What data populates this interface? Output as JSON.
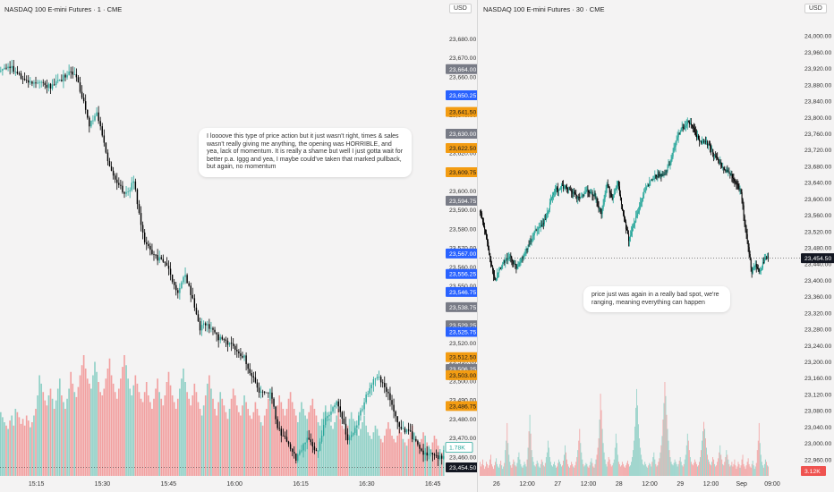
{
  "left_panel": {
    "title": "NASDAQ 100 E-mini Futures · 1 · CME",
    "currency": "USD",
    "annotation": "I loooove this type of price action but it just wasn't right, times & sales wasn't really giving me anything, the opening was HORRIBLE, and yea, lack of momentum. It is really a shame but well I just gotta wait for better p.a. Iggg and yea, I maybe could've taken that marked pullback, but again, no momentum"
  },
  "right_panel": {
    "title": "NASDAQ 100 E-mini Futures · 30 · CME",
    "currency": "USD",
    "annotation": "price just was again in a really bad spot, we're ranging, meaning everything can happen"
  },
  "colors": {
    "up": "#26a69a",
    "down": "#000000",
    "vol_up": "#8fd0c6",
    "vol_down": "#f2a0a0",
    "tag_gray": "#787b86",
    "tag_blue": "#2962ff",
    "tag_orange": "#f39c12",
    "tag_black": "#131722",
    "tag_red": "#ef5350",
    "tag_green_outline": "#26a69a"
  },
  "chart_data": [
    {
      "type": "candlestick",
      "title": "NASDAQ 100 E-mini Futures · 1 · CME",
      "ylabel": "USD",
      "ylim": [
        23450,
        23690
      ],
      "y_ticks": [
        23460,
        23470,
        23480,
        23490,
        23500,
        23510,
        23520,
        23530,
        23540,
        23550,
        23560,
        23570,
        23580,
        23590,
        23600,
        23610,
        23620,
        23630,
        23640,
        23650,
        23660,
        23670,
        23680
      ],
      "x_ticks": [
        "15:15",
        "15:30",
        "15:45",
        "16:00",
        "16:15",
        "16:30",
        "16:45"
      ],
      "price_tags": [
        {
          "label": "23,664.00",
          "value": 23664,
          "style": "gray"
        },
        {
          "label": "23,650.25",
          "value": 23650.25,
          "style": "blue"
        },
        {
          "label": "23,641.50",
          "value": 23641.5,
          "style": "orange"
        },
        {
          "label": "23,630.00",
          "value": 23630,
          "style": "gray"
        },
        {
          "label": "23,622.50",
          "value": 23622.5,
          "style": "orange"
        },
        {
          "label": "23,609.75",
          "value": 23609.75,
          "style": "orange"
        },
        {
          "label": "23,594.75",
          "value": 23594.75,
          "style": "gray"
        },
        {
          "label": "23,567.00",
          "value": 23567,
          "style": "blue"
        },
        {
          "label": "23,556.25",
          "value": 23556.25,
          "style": "blue"
        },
        {
          "label": "23,546.75",
          "value": 23546.75,
          "style": "blue"
        },
        {
          "label": "23,538.75",
          "value": 23538.75,
          "style": "gray"
        },
        {
          "label": "23,529.25",
          "value": 23529.25,
          "style": "gray"
        },
        {
          "label": "23,525.75",
          "value": 23525.75,
          "style": "blue"
        },
        {
          "label": "23,512.50",
          "value": 23512.5,
          "style": "orange"
        },
        {
          "label": "23,506.25",
          "value": 23506.25,
          "style": "gray"
        },
        {
          "label": "23,503.00",
          "value": 23503,
          "style": "orange"
        },
        {
          "label": "23,486.75",
          "value": 23486.75,
          "style": "orange"
        },
        {
          "label": "1.78K",
          "value": 23465,
          "style": "green_outline"
        },
        {
          "label": "23,454.50",
          "value": 23454.5,
          "style": "black"
        }
      ],
      "last_price": 23454.5,
      "volume_label": "1.78K",
      "path": [
        [
          0,
          23663
        ],
        [
          6,
          23665
        ],
        [
          12,
          23658
        ],
        [
          20,
          23657
        ],
        [
          27,
          23655
        ],
        [
          32,
          23658
        ],
        [
          38,
          23664
        ],
        [
          42,
          23657
        ],
        [
          48,
          23635
        ],
        [
          52,
          23642
        ],
        [
          58,
          23615
        ],
        [
          62,
          23605
        ],
        [
          68,
          23598
        ],
        [
          72,
          23605
        ],
        [
          78,
          23572
        ],
        [
          84,
          23565
        ],
        [
          90,
          23562
        ],
        [
          96,
          23545
        ],
        [
          100,
          23556
        ],
        [
          108,
          23528
        ],
        [
          112,
          23530
        ],
        [
          118,
          23522
        ],
        [
          124,
          23520
        ],
        [
          132,
          23512
        ],
        [
          136,
          23503
        ],
        [
          140,
          23495
        ],
        [
          146,
          23495
        ],
        [
          150,
          23475
        ],
        [
          156,
          23468
        ],
        [
          160,
          23458
        ],
        [
          166,
          23470
        ],
        [
          172,
          23462
        ],
        [
          176,
          23480
        ],
        [
          182,
          23490
        ],
        [
          188,
          23470
        ],
        [
          192,
          23475
        ],
        [
          200,
          23497
        ],
        [
          204,
          23503
        ],
        [
          210,
          23492
        ],
        [
          216,
          23476
        ],
        [
          222,
          23472
        ],
        [
          228,
          23463
        ],
        [
          236,
          23460
        ],
        [
          240,
          23460
        ]
      ],
      "vol_range": [
        0,
        100
      ],
      "volume": [
        38,
        35,
        32,
        30,
        28,
        33,
        36,
        30,
        40,
        38,
        35,
        31,
        34,
        30,
        36,
        33,
        29,
        32,
        36,
        40,
        48,
        60,
        55,
        50,
        45,
        42,
        48,
        52,
        46,
        40,
        45,
        52,
        58,
        48,
        44,
        40,
        46,
        52,
        62,
        55,
        50,
        47,
        53,
        60,
        66,
        72,
        64,
        58,
        55,
        52,
        60,
        68,
        62,
        56,
        50,
        48,
        52,
        58,
        64,
        70,
        60,
        55,
        50,
        46,
        52,
        58,
        65,
        72,
        66,
        58,
        52,
        48,
        54,
        60,
        55,
        50,
        46,
        44,
        50,
        56,
        48,
        44,
        40,
        46,
        52,
        58,
        50,
        46,
        42,
        48,
        56,
        62,
        54,
        48,
        44,
        40,
        46,
        52,
        58,
        64,
        56,
        50,
        46,
        42,
        48,
        55,
        50,
        44,
        40,
        36,
        42,
        48,
        55,
        60,
        52,
        46,
        40,
        36,
        44,
        50,
        46,
        42,
        38,
        34,
        40,
        46,
        52,
        48,
        42,
        38,
        36,
        42,
        48,
        44,
        40,
        36,
        34,
        38,
        44,
        40,
        36,
        32,
        30,
        36,
        40,
        46,
        52,
        46,
        40,
        36,
        42,
        48,
        44,
        40,
        36,
        40,
        46,
        50,
        44,
        40,
        36,
        32,
        38,
        44,
        40,
        36,
        34,
        38,
        42,
        46,
        40,
        36,
        32,
        30,
        34,
        38,
        42,
        38,
        34,
        30,
        28,
        32,
        36,
        40,
        34,
        30,
        28,
        26,
        30,
        34,
        38,
        34,
        30,
        28,
        24,
        28,
        32,
        36,
        30,
        26,
        24,
        22,
        26,
        30,
        28,
        24,
        22,
        20,
        24,
        28,
        32,
        28,
        24,
        22,
        20,
        24,
        28,
        26,
        22,
        20,
        18,
        22,
        26,
        30,
        26,
        22,
        20,
        18,
        22,
        26,
        24,
        20,
        18,
        16,
        20,
        24,
        22,
        18,
        16,
        14,
        18,
        22,
        20,
        16
      ]
    },
    {
      "type": "candlestick",
      "title": "NASDAQ 100 E-mini Futures · 30 · CME",
      "ylabel": "USD",
      "ylim": [
        22920,
        24040
      ],
      "y_ticks": [
        22960,
        23000,
        23040,
        23080,
        23120,
        23160,
        23200,
        23240,
        23280,
        23320,
        23360,
        23400,
        23440,
        23480,
        23520,
        23560,
        23600,
        23640,
        23680,
        23720,
        23760,
        23800,
        23840,
        23880,
        23920,
        23960,
        24000
      ],
      "x_ticks": [
        "26",
        "12:00",
        "27",
        "12:00",
        "28",
        "12:00",
        "29",
        "12:00",
        "Sep",
        "09:00"
      ],
      "price_tags": [
        {
          "label": "23,454.50",
          "value": 23454.5,
          "style": "black"
        },
        {
          "label": "3.12K",
          "value": 22932,
          "style": "red"
        }
      ],
      "last_price": 23454.5,
      "volume_label": "3.12K",
      "path": [
        [
          0,
          23570
        ],
        [
          6,
          23520
        ],
        [
          12,
          23440
        ],
        [
          16,
          23400
        ],
        [
          24,
          23440
        ],
        [
          32,
          23460
        ],
        [
          40,
          23430
        ],
        [
          50,
          23470
        ],
        [
          60,
          23520
        ],
        [
          70,
          23540
        ],
        [
          76,
          23580
        ],
        [
          82,
          23620
        ],
        [
          90,
          23630
        ],
        [
          100,
          23620
        ],
        [
          110,
          23600
        ],
        [
          118,
          23620
        ],
        [
          126,
          23610
        ],
        [
          134,
          23560
        ],
        [
          140,
          23640
        ],
        [
          146,
          23600
        ],
        [
          152,
          23640
        ],
        [
          158,
          23560
        ],
        [
          164,
          23500
        ],
        [
          170,
          23540
        ],
        [
          176,
          23580
        ],
        [
          182,
          23620
        ],
        [
          190,
          23650
        ],
        [
          198,
          23660
        ],
        [
          204,
          23660
        ],
        [
          210,
          23690
        ],
        [
          216,
          23740
        ],
        [
          222,
          23770
        ],
        [
          230,
          23790
        ],
        [
          236,
          23770
        ],
        [
          242,
          23740
        ],
        [
          248,
          23740
        ],
        [
          254,
          23730
        ],
        [
          260,
          23700
        ],
        [
          264,
          23690
        ],
        [
          270,
          23670
        ],
        [
          276,
          23660
        ],
        [
          282,
          23640
        ],
        [
          288,
          23620
        ],
        [
          292,
          23540
        ],
        [
          296,
          23480
        ],
        [
          300,
          23420
        ],
        [
          304,
          23440
        ],
        [
          308,
          23420
        ],
        [
          314,
          23450
        ],
        [
          318,
          23460
        ]
      ],
      "volume": [
        12,
        8,
        10,
        14,
        9,
        6,
        8,
        12,
        10,
        7,
        9,
        14,
        18,
        10,
        8,
        6,
        9,
        12,
        15,
        10,
        8,
        7,
        10,
        13,
        9,
        6,
        8,
        11,
        22,
        30,
        45,
        28,
        18,
        12,
        9,
        7,
        10,
        14,
        12,
        9,
        8,
        11,
        16,
        20,
        14,
        10,
        8,
        7,
        9,
        12,
        10,
        8,
        14,
        24,
        38,
        52,
        36,
        22,
        16,
        12,
        9,
        8,
        10,
        13,
        11,
        8,
        7,
        10,
        14,
        12,
        9,
        8,
        11,
        16,
        20,
        30,
        24,
        16,
        12,
        9,
        8,
        10,
        12,
        9,
        7,
        8,
        11,
        14,
        12,
        10,
        8,
        9,
        13,
        18,
        26,
        20,
        14,
        10,
        8,
        7,
        9,
        12,
        10,
        8,
        7,
        9,
        12,
        16,
        22,
        30,
        40,
        28,
        20,
        14,
        10,
        8,
        9,
        11,
        10,
        8,
        7,
        9,
        12,
        15,
        11,
        8,
        7,
        10,
        14,
        18,
        24,
        32,
        48,
        70,
        56,
        40,
        28,
        20,
        14,
        10,
        8,
        12,
        16,
        14,
        10,
        8,
        9,
        11,
        14,
        24,
        36,
        28,
        18,
        12,
        10,
        8,
        9,
        12,
        10,
        8,
        7,
        9,
        11,
        13,
        10,
        8,
        9,
        12,
        16,
        22,
        30,
        42,
        58,
        74,
        60,
        44,
        32,
        24,
        18,
        14,
        10,
        9,
        12,
        10,
        8,
        7,
        9,
        11,
        10,
        8,
        12,
        16,
        20,
        14,
        10,
        8,
        9,
        12,
        15,
        20,
        26,
        34,
        48,
        62,
        80,
        68,
        52,
        40,
        30,
        22,
        16,
        12,
        10,
        9,
        11,
        14,
        12,
        10,
        8,
        10,
        13,
        16,
        12,
        9,
        8,
        10,
        14,
        18,
        26,
        36,
        30,
        22,
        16,
        12,
        10,
        9,
        11,
        14,
        12,
        10,
        8,
        9,
        12,
        16,
        22,
        30,
        38,
        46,
        40,
        32,
        24,
        18,
        14,
        12,
        10,
        9,
        12,
        16,
        14,
        10,
        8,
        9,
        12,
        15,
        20,
        26,
        18,
        14,
        10,
        9,
        12,
        16,
        22,
        18,
        14,
        10,
        8,
        9
      ]
    }
  ]
}
